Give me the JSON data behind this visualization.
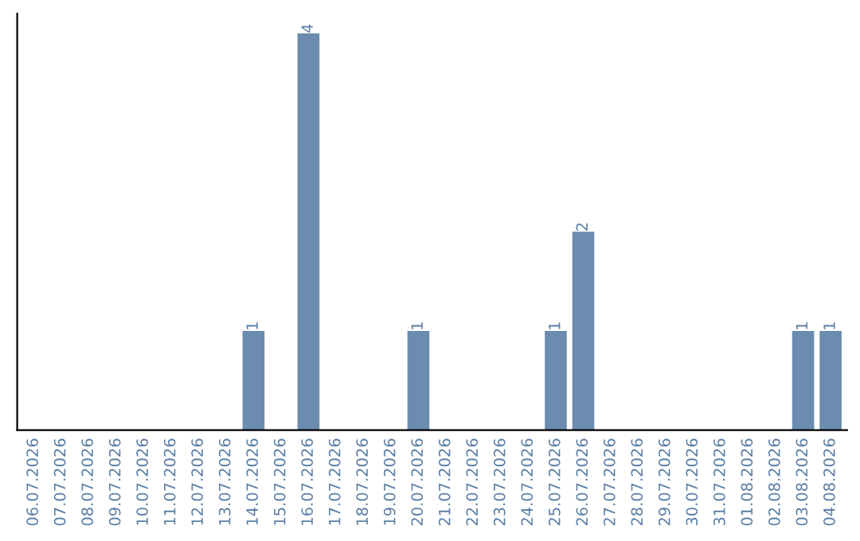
{
  "chart_data": {
    "type": "bar",
    "categories": [
      "06.07.2026",
      "07.07.2026",
      "08.07.2026",
      "09.07.2026",
      "10.07.2026",
      "11.07.2026",
      "12.07.2026",
      "13.07.2026",
      "14.07.2026",
      "15.07.2026",
      "16.07.2026",
      "17.07.2026",
      "18.07.2026",
      "19.07.2026",
      "20.07.2026",
      "21.07.2026",
      "22.07.2026",
      "23.07.2026",
      "24.07.2026",
      "25.07.2026",
      "26.07.2026",
      "27.07.2026",
      "28.07.2026",
      "29.07.2026",
      "30.07.2026",
      "31.07.2026",
      "01.08.2026",
      "02.08.2026",
      "03.08.2026",
      "04.08.2026"
    ],
    "values": [
      0,
      0,
      0,
      0,
      0,
      0,
      0,
      0,
      1,
      0,
      4,
      0,
      0,
      0,
      1,
      0,
      0,
      0,
      0,
      1,
      2,
      0,
      0,
      0,
      0,
      0,
      0,
      0,
      1,
      1
    ],
    "value_labels": [
      null,
      null,
      null,
      null,
      null,
      null,
      null,
      null,
      "1",
      null,
      "4",
      null,
      null,
      null,
      "1",
      null,
      null,
      null,
      null,
      "1",
      "2",
      null,
      null,
      null,
      null,
      null,
      null,
      null,
      "1",
      "1"
    ],
    "color": "#6b8cae",
    "tick_labels": "x",
    "grid": false,
    "legend": false
  }
}
